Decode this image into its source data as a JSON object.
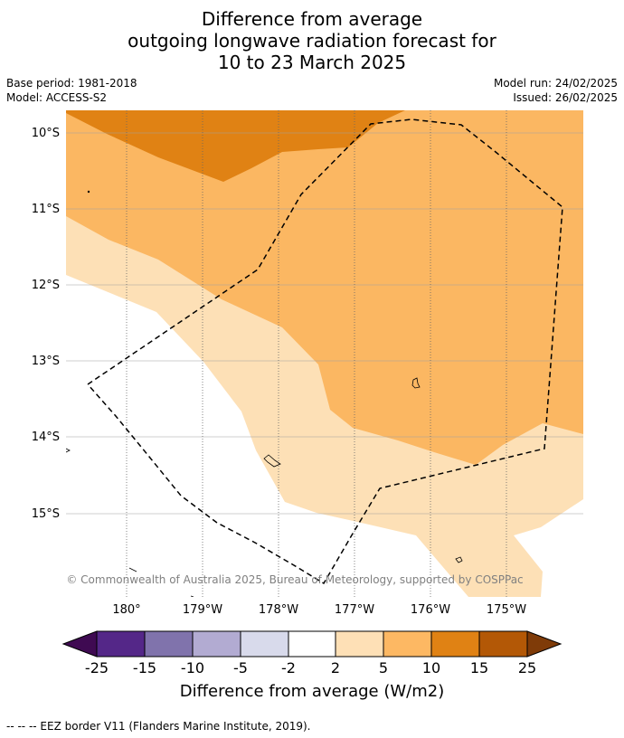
{
  "title": {
    "line1": "Difference from average",
    "line2": "outgoing longwave radiation forecast for",
    "line3": "10 to 23 March 2025"
  },
  "meta": {
    "base_period": "Base period: 1981-2018",
    "model": "Model: ACCESS-S2",
    "model_run": "Model run: 24/02/2025",
    "issued": "Issued: 26/02/2025"
  },
  "map": {
    "lat_labels": [
      "10°S",
      "11°S",
      "12°S",
      "13°S",
      "14°S",
      "15°S"
    ],
    "lon_labels": [
      "180°",
      "179°W",
      "178°W",
      "177°W",
      "176°W",
      "175°W"
    ],
    "copyright": "© Commonwealth of Australia 2025, Bureau of Meteorology, supported by COSPPac",
    "colors": {
      "c2_5": "#fde0b6",
      "c5_10": "#fbb762",
      "c10_15": "#e08214",
      "grid": "#a0a0a0",
      "eez": "#000000"
    }
  },
  "colorbar": {
    "tick_labels": [
      "-25",
      "-15",
      "-10",
      "-5",
      "-2",
      "2",
      "5",
      "10",
      "15",
      "25"
    ],
    "colors": [
      "#3f0a52",
      "#542788",
      "#8073ac",
      "#b2abd2",
      "#d8daeb",
      "#ffffff",
      "#fee0b6",
      "#fdb863",
      "#e08214",
      "#b35806",
      "#7f3b08"
    ],
    "label": "Difference from average (W/m2)"
  },
  "legend": {
    "eez": "--  --  -- EEZ border V11 (Flanders Marine Institute, 2019)."
  }
}
